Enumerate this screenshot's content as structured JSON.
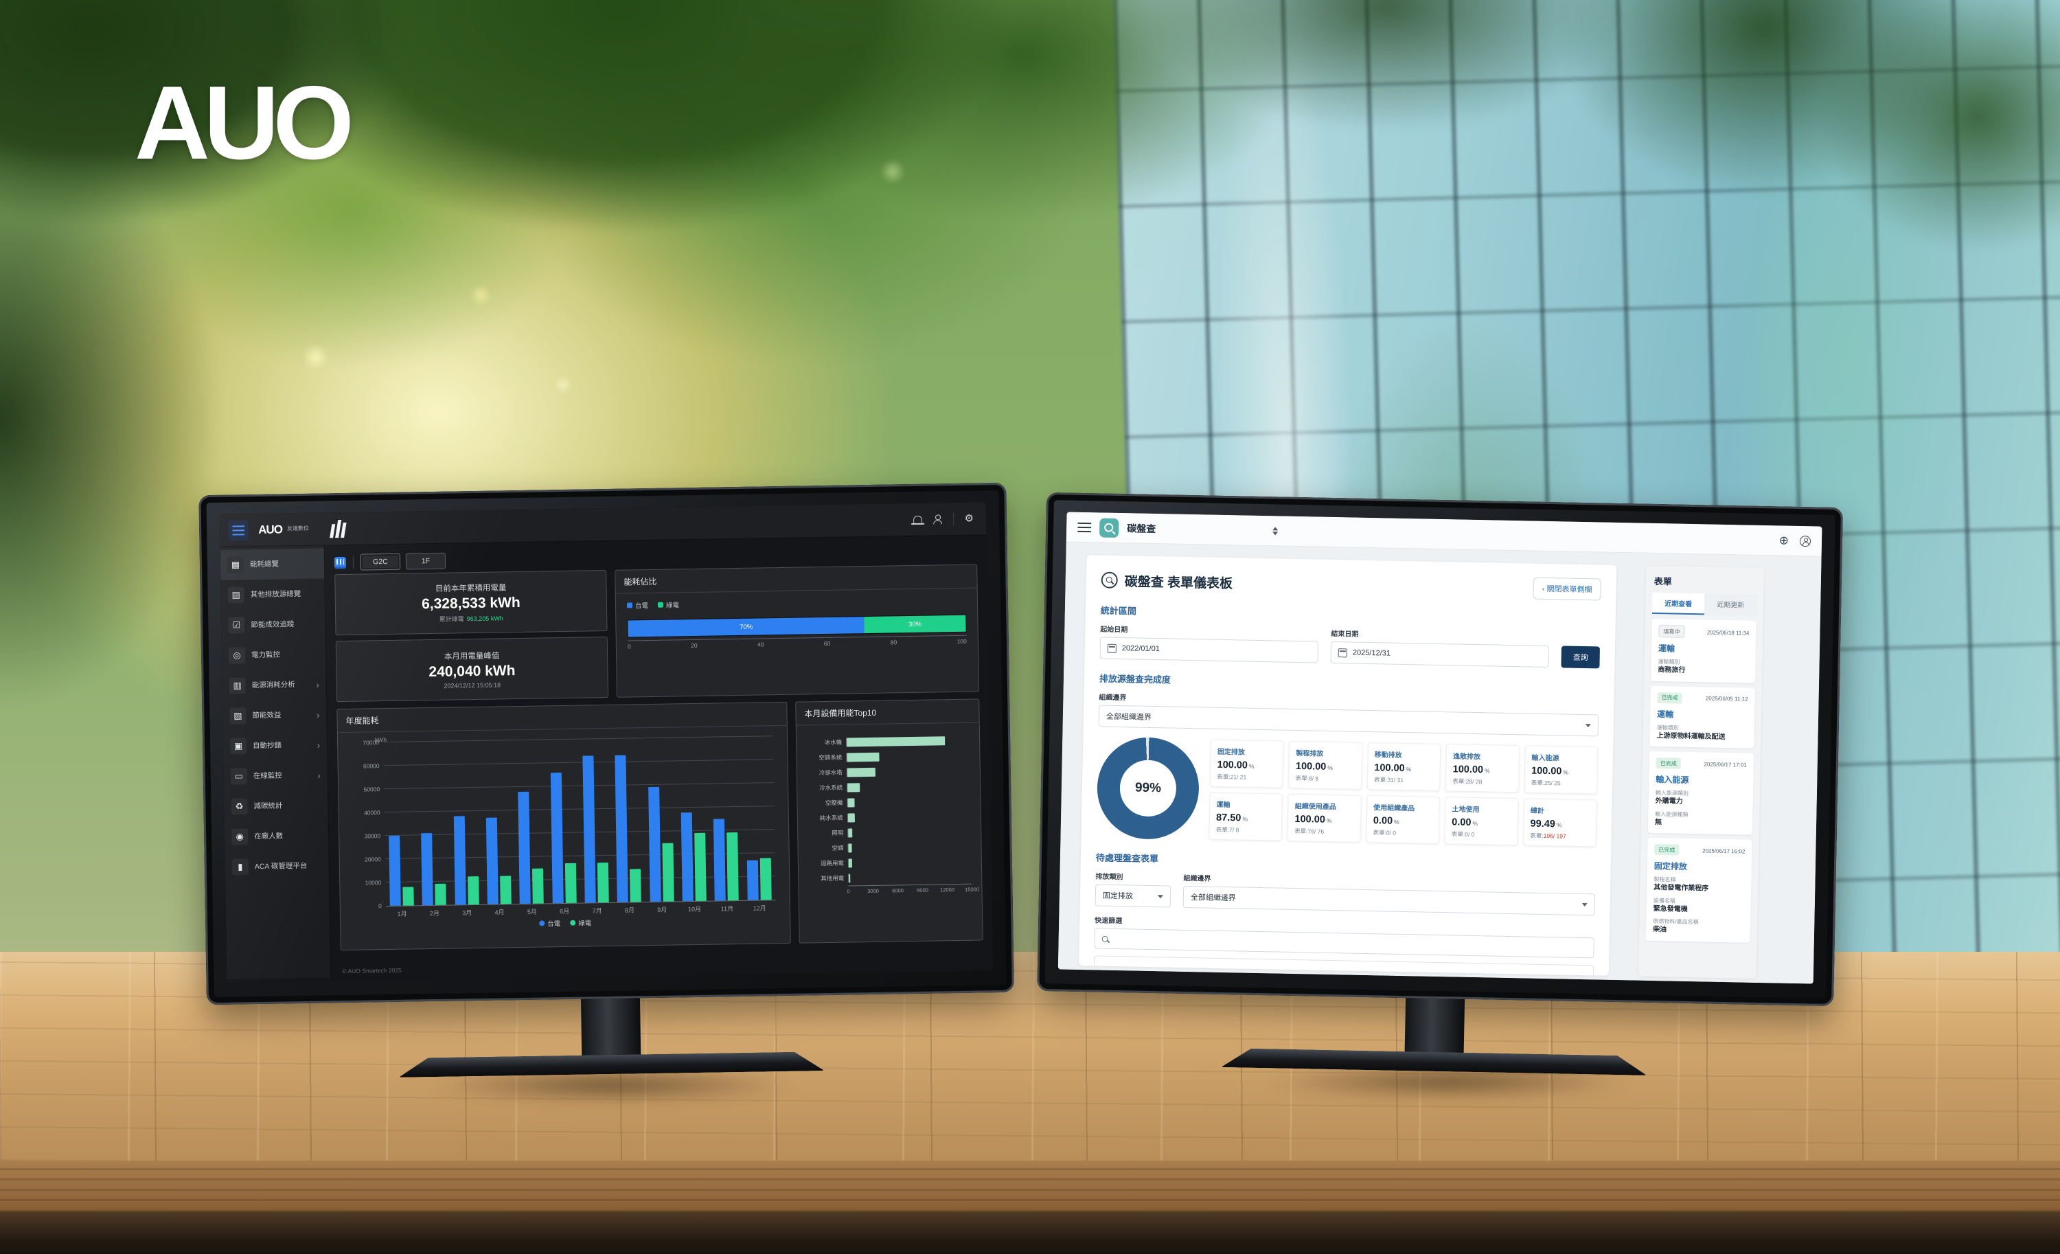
{
  "scene": {
    "brand": "AUO"
  },
  "icons": {
    "hamburger-menu": "css-bars",
    "bell-icon": "css-bell",
    "user-icon": "css-person",
    "gear-icon": "⚙",
    "globe-icon": "⊕",
    "account-icon": "css-person-circle",
    "search-icon": "css-magnifier",
    "calendar-icon": "css-calendar",
    "chevron-right-icon": "›",
    "chevron-down-icon": "css-triangle",
    "sort-icon": "css-triangles",
    "building-icon": "css-building"
  },
  "left_monitor": {
    "header": {
      "app_logo": "AUO",
      "app_logo_sub": "友達數位"
    },
    "sidebar": [
      {
        "key": "energy-overview",
        "icon": "▦",
        "label": "能耗總覽",
        "active": true
      },
      {
        "key": "other-emission-overview",
        "icon": "▤",
        "label": "其他排放源總覽"
      },
      {
        "key": "saving-performance",
        "icon": "☑",
        "label": "節能成效追蹤"
      },
      {
        "key": "power-monitor",
        "icon": "◎",
        "label": "電力監控"
      },
      {
        "key": "energy-analysis",
        "icon": "▥",
        "label": "能源消耗分析",
        "expand": true
      },
      {
        "key": "saving-benefit",
        "icon": "▧",
        "label": "節能效益",
        "expand": true
      },
      {
        "key": "auto-meter",
        "icon": "▣",
        "label": "自動抄錶",
        "expand": true
      },
      {
        "key": "online-monitor",
        "icon": "▭",
        "label": "在線監控",
        "expand": true
      },
      {
        "key": "carbon-stats",
        "icon": "♻",
        "label": "減碳統計"
      },
      {
        "key": "people-count",
        "icon": "◉",
        "label": "在廠人數"
      },
      {
        "key": "aca-platform",
        "icon": "▮",
        "label": "ACA 碳管理平台"
      }
    ],
    "breadcrumb": [
      "G2C",
      "1F"
    ],
    "stat_cards": [
      {
        "title": "目前本年累積用電量",
        "value": "6,328,533 kWh",
        "sub_label": "累計綠電",
        "sub_value": "963,205 kWh"
      },
      {
        "title": "本月用電量峰值",
        "value": "240,040 kWh",
        "sub_label": "2024/12/12 15:05:18",
        "sub_value": ""
      }
    ],
    "footer": "© AUO Smartech 2025"
  },
  "chart_data": [
    {
      "id": "energy_ratio",
      "type": "bar",
      "stacked": true,
      "horizontal": true,
      "title": "能耗佔比",
      "series": [
        {
          "name": "台電",
          "value": 70,
          "color": "#2e7ff0",
          "label": "70%"
        },
        {
          "name": "綠電",
          "value": 30,
          "color": "#1fd08a",
          "label": "30%"
        }
      ],
      "xlim": [
        0,
        100
      ],
      "xticks": [
        "0",
        "20",
        "40",
        "60",
        "80",
        "100"
      ]
    },
    {
      "id": "yearly_energy",
      "type": "bar",
      "title": "年度能耗",
      "ylabel": "kWh",
      "ylim": [
        0,
        70000
      ],
      "yticks": [
        0,
        10000,
        20000,
        30000,
        40000,
        50000,
        60000,
        70000
      ],
      "categories": [
        "1月",
        "2月",
        "3月",
        "4月",
        "5月",
        "6月",
        "7月",
        "8月",
        "9月",
        "10月",
        "11月",
        "12月"
      ],
      "series": [
        {
          "name": "台電",
          "color": "#2e7ff0",
          "values": [
            30000,
            31000,
            38000,
            37000,
            48000,
            56000,
            63000,
            63000,
            49000,
            38000,
            35000,
            17000
          ]
        },
        {
          "name": "綠電",
          "color": "#2fd68f",
          "values": [
            8000,
            9000,
            12000,
            12000,
            15000,
            17000,
            17000,
            14000,
            25000,
            29000,
            29000,
            18000
          ]
        }
      ]
    },
    {
      "id": "top10_equipment",
      "type": "bar",
      "horizontal": true,
      "title": "本月設備用能Top10",
      "categories": [
        "冰水機",
        "空調系統",
        "冷卻水塔",
        "冷水系統",
        "空壓機",
        "純水系統",
        "照明",
        "空調",
        "迴路用電",
        "其他用電"
      ],
      "values": [
        12000,
        3900,
        3400,
        1500,
        800,
        800,
        500,
        450,
        400,
        200
      ],
      "color": "#a5ddc0",
      "xlim": [
        0,
        15000
      ],
      "xticks": [
        0,
        3000,
        6000,
        9000,
        12000,
        15000
      ]
    },
    {
      "id": "completion_donut",
      "type": "pie",
      "value": 99,
      "label": "99%",
      "color": "#2d608f",
      "track": "#e2e6ea"
    }
  ],
  "right_monitor": {
    "topbar": {
      "app_title": "碳盤查"
    },
    "page": {
      "title": "碳盤查 表單儀表板",
      "collapse_button": "‹  關閉表單側欄",
      "section_period": "統計區間",
      "start_label": "起始日期",
      "start_value": "2022/01/01",
      "end_label": "結束日期",
      "end_value": "2025/12/31",
      "search_button": "查詢",
      "section_completion": "排放源盤查完成度",
      "boundary_label": "組織邊界",
      "boundary_value": "全部組織邊界",
      "completion_cards": [
        {
          "title": "固定排放",
          "value": "100.00",
          "unit": "%",
          "forms": "表單:21/ 21"
        },
        {
          "title": "製程排放",
          "value": "100.00",
          "unit": "%",
          "forms": "表單:8/ 8"
        },
        {
          "title": "移動排放",
          "value": "100.00",
          "unit": "%",
          "forms": "表單:31/ 31"
        },
        {
          "title": "逸散排放",
          "value": "100.00",
          "unit": "%",
          "forms": "表單:28/ 28"
        },
        {
          "title": "輸入能源",
          "value": "100.00",
          "unit": "%",
          "forms": "表單:25/ 25"
        },
        {
          "title": "運輸",
          "value": "87.50",
          "unit": "%",
          "forms": "表單:7/ 8"
        },
        {
          "title": "組織使用產品",
          "value": "100.00",
          "unit": "%",
          "forms": "表單:76/ 76"
        },
        {
          "title": "使用組織產品",
          "value": "0.00",
          "unit": "%",
          "forms": "表單:0/ 0"
        },
        {
          "title": "土地使用",
          "value": "0.00",
          "unit": "%",
          "forms": "表單:0/ 0"
        },
        {
          "title": "總計",
          "value": "99.49",
          "unit": "%",
          "forms": "表單:196/ 197",
          "highlight": true
        }
      ],
      "section_pending": "待處理盤查表單",
      "category_label": "排放類別",
      "category_value": "固定排放",
      "boundary2_label": "組織邊界",
      "boundary2_value": "全部組織邊界",
      "quick_filter_label": "快速篩選"
    },
    "sidebar": {
      "title": "表單",
      "tabs": [
        {
          "label": "近期查看",
          "active": true
        },
        {
          "label": "近期更新",
          "active": false
        }
      ],
      "cards": [
        {
          "status": "填寫中",
          "status_type": "draft",
          "date": "2025/06/18 11:34",
          "title": "運輸",
          "fields": [
            {
              "label": "運輸類別",
              "value": "商務旅行"
            }
          ]
        },
        {
          "status": "已完成",
          "status_type": "done",
          "date": "2025/06/05 11:12",
          "title": "運輸",
          "fields": [
            {
              "label": "運輸類別",
              "value": "上游原物料運輸及配送"
            }
          ]
        },
        {
          "status": "已完成",
          "status_type": "done",
          "date": "2025/06/17 17:01",
          "title": "輸入能源",
          "fields": [
            {
              "label": "輸入能源類別",
              "value": "外購電力"
            },
            {
              "label": "輸入能源種類",
              "value": "無"
            }
          ]
        },
        {
          "status": "已完成",
          "status_type": "done",
          "date": "2025/06/17 16:02",
          "title": "固定排放",
          "fields": [
            {
              "label": "製程名稱",
              "value": "其他發電作業程序"
            },
            {
              "label": "設備名稱",
              "value": "緊急發電機"
            },
            {
              "label": "原燃物料/產品名稱",
              "value": "柴油"
            }
          ]
        }
      ]
    }
  }
}
